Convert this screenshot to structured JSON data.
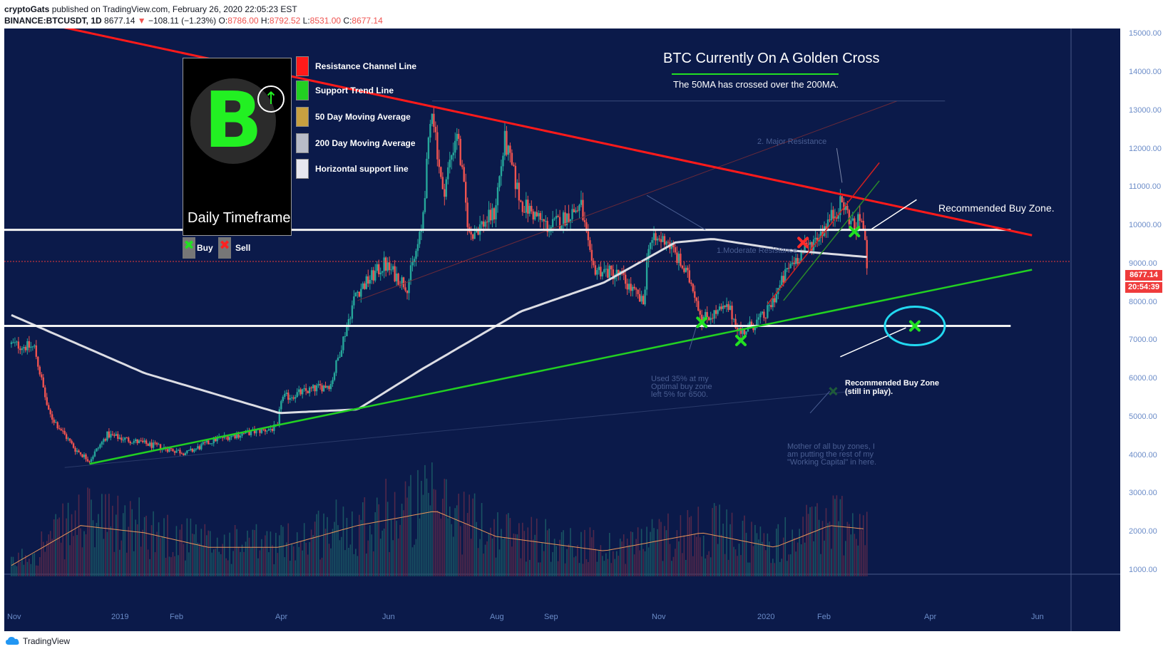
{
  "header": {
    "author": "cryptoGats",
    "published": "published on TradingView.com, February 26, 2020 22:05:23 EST",
    "symbol": "BINANCE:BTCUSDT, 1D",
    "last": "8677.14",
    "change": "−108.11 (−1.23%)",
    "o_label": "O:",
    "o": "8786.00",
    "h_label": "H:",
    "h": "8792.52",
    "l_label": "L:",
    "l": "8531.00",
    "c_label": "C:",
    "c": "8677.14"
  },
  "legend": {
    "timeframe": "Daily Timeframe",
    "items": [
      {
        "label": "Resistance Channel Line",
        "color": "#ff1a1a"
      },
      {
        "label": "Support Trend Line",
        "color": "#22d022"
      },
      {
        "label": "50 Day Moving Average",
        "color": "#c8a040"
      },
      {
        "label": "200 Day Moving Average",
        "color": "#b8bcc8"
      },
      {
        "label": "Horizontal support line",
        "color": "#e8e8f0"
      }
    ],
    "buy": "Buy",
    "sell": "Sell"
  },
  "annotations": {
    "title": "BTC Currently On A Golden Cross",
    "subtitle": "The 50MA has crossed over the 200MA.",
    "major_resistance": "2. Major Resistance",
    "moderate_resistance": "1.Moderate Resistance",
    "recommended_buy_zone": "Recommended Buy Zone.",
    "still_in_play_1": "Recommended Buy Zone",
    "still_in_play_2": "(still in play).",
    "used_1": "Used 35% at my",
    "used_2": "Optimal buy zone",
    "used_3": "left 5% for 6500.",
    "mother_1": "Mother of all buy zones, I",
    "mother_2": "am putting the rest of my",
    "mother_3": "\"Working Capital\" in here."
  },
  "price_tags": {
    "last": "8677.14",
    "countdown": "20:54:39"
  },
  "footer": {
    "brand": "TradingView"
  },
  "colors": {
    "background": "#0b1a4a",
    "up": "#26a69a",
    "down": "#ef5350",
    "resistance": "#ff1a1a",
    "support": "#22d022",
    "ma200": "#dcdde4",
    "volume_ma": "#e8955a"
  },
  "chart_data": {
    "type": "candlestick",
    "ylim": [
      0,
      15000
    ],
    "y_ticks": [
      "15000.00",
      "14000.00",
      "13000.00",
      "12000.00",
      "11000.00",
      "10000.00",
      "9000.00",
      "8000.00",
      "7000.00",
      "6000.00",
      "5000.00",
      "4000.00",
      "3000.00",
      "2000.00",
      "1000.00"
    ],
    "x_ticks": [
      "Nov",
      "2019",
      "Feb",
      "Apr",
      "Jun",
      "Aug",
      "Sep",
      "Nov",
      "2020",
      "Feb",
      "Apr",
      "Jun"
    ],
    "close_keypoints": [
      [
        "2018-11-01",
        6400
      ],
      [
        "2018-11-14",
        6300
      ],
      [
        "2018-11-22",
        4500
      ],
      [
        "2018-12-07",
        3500
      ],
      [
        "2018-12-15",
        3200
      ],
      [
        "2018-12-25",
        3900
      ],
      [
        "2019-01-20",
        3600
      ],
      [
        "2019-02-08",
        3400
      ],
      [
        "2019-02-25",
        3800
      ],
      [
        "2019-03-31",
        4100
      ],
      [
        "2019-04-02",
        4900
      ],
      [
        "2019-04-30",
        5300
      ],
      [
        "2019-05-14",
        7800
      ],
      [
        "2019-05-30",
        8600
      ],
      [
        "2019-06-12",
        8000
      ],
      [
        "2019-06-20",
        9500
      ],
      [
        "2019-06-26",
        13000
      ],
      [
        "2019-07-02",
        10500
      ],
      [
        "2019-07-10",
        12300
      ],
      [
        "2019-07-17",
        9400
      ],
      [
        "2019-07-31",
        10000
      ],
      [
        "2019-08-06",
        12000
      ],
      [
        "2019-08-15",
        10300
      ],
      [
        "2019-08-31",
        9600
      ],
      [
        "2019-09-18",
        10200
      ],
      [
        "2019-09-24",
        8500
      ],
      [
        "2019-10-10",
        8300
      ],
      [
        "2019-10-23",
        7500
      ],
      [
        "2019-10-26",
        9200
      ],
      [
        "2019-11-05",
        9300
      ],
      [
        "2019-11-20",
        8000
      ],
      [
        "2019-11-25",
        7100
      ],
      [
        "2019-12-10",
        7400
      ],
      [
        "2019-12-17",
        6700
      ],
      [
        "2019-12-31",
        7200
      ],
      [
        "2020-01-08",
        8000
      ],
      [
        "2020-01-14",
        8600
      ],
      [
        "2020-01-28",
        9300
      ],
      [
        "2020-02-12",
        10300
      ],
      [
        "2020-02-19",
        9600
      ],
      [
        "2020-02-23",
        9900
      ],
      [
        "2020-02-26",
        8677.14
      ]
    ],
    "ma200_keypoints": [
      [
        "2018-11-01",
        7200
      ],
      [
        "2019-01-15",
        5600
      ],
      [
        "2019-04-01",
        4500
      ],
      [
        "2019-05-15",
        4600
      ],
      [
        "2019-06-20",
        5700
      ],
      [
        "2019-08-15",
        7300
      ],
      [
        "2019-10-01",
        8100
      ],
      [
        "2019-11-10",
        9200
      ],
      [
        "2019-12-01",
        9300
      ],
      [
        "2020-01-10",
        9000
      ],
      [
        "2020-02-26",
        8800
      ]
    ],
    "volume_ma_keypoints": [
      [
        "2018-11-01",
        300
      ],
      [
        "2018-12-10",
        1400
      ],
      [
        "2019-01-15",
        1200
      ],
      [
        "2019-02-20",
        800
      ],
      [
        "2019-04-01",
        800
      ],
      [
        "2019-05-15",
        1400
      ],
      [
        "2019-06-28",
        1800
      ],
      [
        "2019-08-01",
        1100
      ],
      [
        "2019-10-01",
        700
      ],
      [
        "2019-11-25",
        1200
      ],
      [
        "2020-01-05",
        800
      ],
      [
        "2020-02-05",
        1400
      ],
      [
        "2020-02-26",
        1300
      ]
    ],
    "lines": {
      "resistance_channel": [
        [
          "2018-11-14",
          15300
        ],
        [
          "2020-05-29",
          9400
        ]
      ],
      "support_trend": [
        [
          "2018-12-15",
          3100
        ],
        [
          "2020-05-29",
          8450
        ]
      ],
      "horizontal_support_1": 9550,
      "horizontal_support_2": 6900,
      "horizontal_support_end": "2020-05-17"
    },
    "markers": [
      {
        "type": "buy",
        "date": "2019-11-25",
        "price": 7000
      },
      {
        "type": "buy",
        "date": "2019-12-17",
        "price": 6500
      },
      {
        "type": "sell",
        "date": "2020-01-21",
        "price": 9200
      },
      {
        "type": "buy",
        "date": "2020-02-19",
        "price": 9500
      },
      {
        "type": "buy",
        "date": "2020-03-24",
        "price": 6900
      }
    ]
  }
}
